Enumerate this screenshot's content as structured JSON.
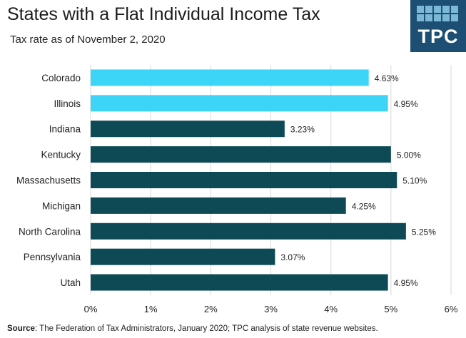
{
  "title": "States with a Flat Individual Income Tax",
  "subtitle": "Tax rate as of November  2, 2020",
  "logo": {
    "text": "TPC",
    "color": "#1c4f73"
  },
  "source": {
    "label": "Source",
    "text": ": The Federation of Tax Administrators, January 2020; TPC analysis of state revenue websites."
  },
  "colors": {
    "highlight": "#3dd5f7",
    "default": "#0e4a55",
    "grid": "#d9d9d9"
  },
  "chart_data": {
    "type": "bar",
    "orientation": "horizontal",
    "title": "States with a Flat Individual Income Tax",
    "subtitle": "Tax rate as of November  2, 2020",
    "xlabel": "",
    "ylabel": "",
    "categories": [
      "Colorado",
      "Illinois",
      "Indiana",
      "Kentucky",
      "Massachusetts",
      "Michigan",
      "North Carolina",
      "Pennsylvania",
      "Utah"
    ],
    "values": [
      4.63,
      4.95,
      3.23,
      5.0,
      5.1,
      4.25,
      5.25,
      3.07,
      4.95
    ],
    "labels": [
      "4.63%",
      "4.95%",
      "3.23%",
      "5.00%",
      "5.10%",
      "4.25%",
      "5.25%",
      "3.07%",
      "4.95%"
    ],
    "highlighted": [
      "Colorado",
      "Illinois"
    ],
    "xlim": [
      0,
      6
    ],
    "xticks": [
      0,
      1,
      2,
      3,
      4,
      5,
      6
    ],
    "xtick_labels": [
      "0%",
      "1%",
      "2%",
      "3%",
      "4%",
      "5%",
      "6%"
    ],
    "grid": true
  }
}
